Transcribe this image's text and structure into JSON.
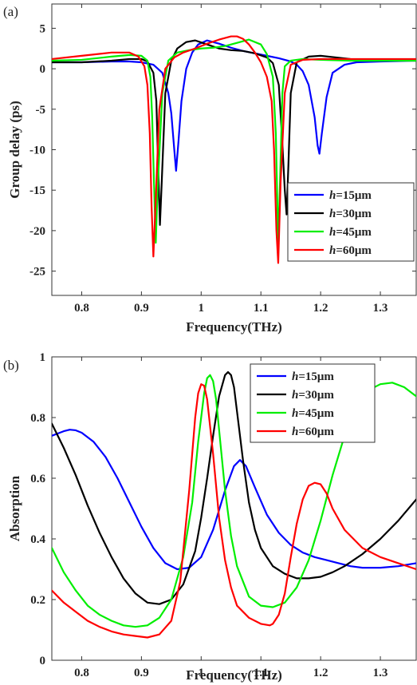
{
  "chart_data": [
    {
      "type": "line",
      "panel_label": "(a)",
      "xlabel": "Frequency(THz)",
      "ylabel": "Group delay (ps)",
      "xlim": [
        0.75,
        1.36
      ],
      "ylim": [
        -28,
        8
      ],
      "xticks": [
        0.8,
        0.9,
        1,
        1.1,
        1.2,
        1.3
      ],
      "xtick_labels": [
        "0.8",
        "0.9",
        "1",
        "1.1",
        "1.2",
        "1.3"
      ],
      "yticks": [
        5,
        0,
        -5,
        -10,
        -15,
        -20,
        -25
      ],
      "ytick_labels": [
        "5",
        "0",
        "-5",
        "-10",
        "-15",
        "-20",
        "-25"
      ],
      "legend_position": "bottom-right",
      "series": [
        {
          "name": "h=15μm",
          "legend_prefix": "h",
          "legend_suffix": "=15μm",
          "color": "#0000ff",
          "x": [
            0.75,
            0.8,
            0.85,
            0.88,
            0.9,
            0.92,
            0.935,
            0.945,
            0.95,
            0.955,
            0.958,
            0.962,
            0.967,
            0.975,
            0.985,
            0.995,
            1.01,
            1.03,
            1.05,
            1.07,
            1.09,
            1.11,
            1.13,
            1.15,
            1.16,
            1.17,
            1.18,
            1.19,
            1.195,
            1.198,
            1.202,
            1.21,
            1.22,
            1.24,
            1.26,
            1.3,
            1.36
          ],
          "y": [
            0.8,
            0.8,
            0.9,
            0.9,
            0.8,
            0.5,
            -0.5,
            -3,
            -5.5,
            -10,
            -12.6,
            -9,
            -4,
            0,
            2,
            3,
            3.5,
            3.1,
            2.6,
            2.2,
            1.9,
            1.6,
            1.3,
            0.9,
            0.5,
            -0.3,
            -2,
            -6,
            -9.5,
            -10.5,
            -8,
            -3.5,
            -0.5,
            0.5,
            0.8,
            0.9,
            1.0
          ]
        },
        {
          "name": "h=30μm",
          "legend_prefix": "h",
          "legend_suffix": "=30μm",
          "color": "#000000",
          "x": [
            0.75,
            0.8,
            0.85,
            0.88,
            0.9,
            0.91,
            0.92,
            0.925,
            0.928,
            0.931,
            0.934,
            0.94,
            0.95,
            0.96,
            0.975,
            0.99,
            1.01,
            1.03,
            1.05,
            1.07,
            1.09,
            1.11,
            1.12,
            1.13,
            1.135,
            1.14,
            1.143,
            1.146,
            1.15,
            1.16,
            1.18,
            1.2,
            1.25,
            1.3,
            1.36
          ],
          "y": [
            0.8,
            0.8,
            1.0,
            1.2,
            1.2,
            0.9,
            -0.5,
            -4,
            -12,
            -19.3,
            -14,
            -3,
            1,
            2.5,
            3.3,
            3.5,
            3.0,
            2.5,
            2.3,
            2.2,
            1.9,
            1.4,
            0.7,
            -2,
            -8,
            -15,
            -18,
            -12,
            -3,
            0.8,
            1.5,
            1.6,
            1.2,
            1.1,
            1.0
          ]
        },
        {
          "name": "h=45μm",
          "legend_prefix": "h",
          "legend_suffix": "=45μm",
          "color": "#00ee00",
          "x": [
            0.75,
            0.8,
            0.85,
            0.88,
            0.9,
            0.91,
            0.915,
            0.918,
            0.921,
            0.924,
            0.927,
            0.935,
            0.945,
            0.96,
            0.98,
            1.0,
            1.02,
            1.04,
            1.06,
            1.08,
            1.1,
            1.11,
            1.12,
            1.125,
            1.129,
            1.132,
            1.136,
            1.14,
            1.15,
            1.17,
            1.2,
            1.25,
            1.3,
            1.36
          ],
          "y": [
            1.0,
            1.1,
            1.5,
            1.7,
            1.6,
            1.0,
            -1,
            -6,
            -14,
            -21.5,
            -15,
            -3,
            1,
            2,
            2.3,
            2.5,
            2.6,
            2.8,
            3.2,
            3.6,
            3.0,
            1.8,
            -1,
            -8,
            -21.5,
            -14,
            -3,
            0.3,
            1,
            1.2,
            1.1,
            1.0,
            1.0,
            1.0
          ]
        },
        {
          "name": "h=60μm",
          "legend_prefix": "h",
          "legend_suffix": "=60μm",
          "color": "#ff0000",
          "x": [
            0.75,
            0.8,
            0.85,
            0.88,
            0.895,
            0.905,
            0.91,
            0.914,
            0.917,
            0.92,
            0.924,
            0.93,
            0.94,
            0.955,
            0.97,
            0.99,
            1.01,
            1.03,
            1.05,
            1.06,
            1.07,
            1.08,
            1.09,
            1.1,
            1.11,
            1.118,
            1.122,
            1.126,
            1.129,
            1.133,
            1.14,
            1.15,
            1.17,
            1.2,
            1.25,
            1.3,
            1.36
          ],
          "y": [
            1.2,
            1.6,
            2.0,
            2.0,
            1.5,
            0.3,
            -2,
            -8,
            -17,
            -23.2,
            -16,
            -5,
            0,
            1.4,
            2,
            2.5,
            3.1,
            3.6,
            4.0,
            4.0,
            3.7,
            3.0,
            2.0,
            0.8,
            -1,
            -4,
            -10,
            -20,
            -24,
            -14,
            -3,
            0.5,
            1.1,
            1.2,
            1.2,
            1.2,
            1.2
          ]
        }
      ]
    },
    {
      "type": "line",
      "panel_label": "(b)",
      "xlabel": "Frequency(THz)",
      "ylabel": "Absorption",
      "xlim": [
        0.75,
        1.36
      ],
      "ylim": [
        0,
        1
      ],
      "xticks": [
        0.8,
        0.9,
        1,
        1.1,
        1.2,
        1.3
      ],
      "xtick_labels": [
        "0.8",
        "0.9",
        "1",
        "1.1",
        "1.2",
        "1.3"
      ],
      "yticks": [
        0,
        0.2,
        0.4,
        0.6,
        0.8,
        1
      ],
      "ytick_labels": [
        "0",
        "0.2",
        "0.4",
        "0.6",
        "0.8",
        "1"
      ],
      "legend_position": "top-center",
      "series": [
        {
          "name": "h=15μm",
          "legend_prefix": "h",
          "legend_suffix": "=15μm",
          "color": "#0000ff",
          "x": [
            0.75,
            0.77,
            0.78,
            0.79,
            0.8,
            0.82,
            0.84,
            0.86,
            0.88,
            0.9,
            0.92,
            0.94,
            0.96,
            0.98,
            1.0,
            1.02,
            1.04,
            1.055,
            1.065,
            1.075,
            1.09,
            1.11,
            1.13,
            1.15,
            1.17,
            1.19,
            1.21,
            1.23,
            1.25,
            1.27,
            1.3,
            1.33,
            1.36
          ],
          "y": [
            0.74,
            0.755,
            0.76,
            0.758,
            0.75,
            0.72,
            0.67,
            0.6,
            0.52,
            0.44,
            0.37,
            0.32,
            0.3,
            0.305,
            0.34,
            0.43,
            0.56,
            0.64,
            0.66,
            0.64,
            0.57,
            0.48,
            0.42,
            0.38,
            0.355,
            0.34,
            0.33,
            0.32,
            0.31,
            0.305,
            0.305,
            0.31,
            0.32
          ]
        },
        {
          "name": "h=30μm",
          "legend_prefix": "h",
          "legend_suffix": "=30μm",
          "color": "#000000",
          "x": [
            0.75,
            0.77,
            0.79,
            0.81,
            0.83,
            0.85,
            0.87,
            0.89,
            0.91,
            0.93,
            0.95,
            0.97,
            0.99,
            1.0,
            1.01,
            1.02,
            1.03,
            1.04,
            1.045,
            1.05,
            1.055,
            1.06,
            1.07,
            1.08,
            1.09,
            1.1,
            1.12,
            1.14,
            1.16,
            1.18,
            1.2,
            1.22,
            1.24,
            1.27,
            1.3,
            1.33,
            1.36
          ],
          "y": [
            0.78,
            0.7,
            0.61,
            0.51,
            0.42,
            0.34,
            0.27,
            0.22,
            0.19,
            0.185,
            0.2,
            0.25,
            0.36,
            0.47,
            0.6,
            0.74,
            0.87,
            0.94,
            0.95,
            0.94,
            0.9,
            0.82,
            0.66,
            0.52,
            0.43,
            0.37,
            0.31,
            0.285,
            0.27,
            0.27,
            0.275,
            0.29,
            0.31,
            0.35,
            0.4,
            0.46,
            0.53
          ]
        },
        {
          "name": "h=45μm",
          "legend_prefix": "h",
          "legend_suffix": "=45μm",
          "color": "#00ee00",
          "x": [
            0.75,
            0.77,
            0.79,
            0.81,
            0.83,
            0.85,
            0.87,
            0.89,
            0.91,
            0.93,
            0.95,
            0.97,
            0.985,
            0.995,
            1.005,
            1.01,
            1.015,
            1.02,
            1.025,
            1.03,
            1.04,
            1.05,
            1.06,
            1.08,
            1.1,
            1.12,
            1.14,
            1.16,
            1.18,
            1.2,
            1.22,
            1.24,
            1.26,
            1.28,
            1.3,
            1.32,
            1.34,
            1.36
          ],
          "y": [
            0.37,
            0.29,
            0.23,
            0.18,
            0.15,
            0.13,
            0.115,
            0.11,
            0.115,
            0.14,
            0.2,
            0.34,
            0.52,
            0.72,
            0.88,
            0.93,
            0.94,
            0.92,
            0.86,
            0.76,
            0.56,
            0.41,
            0.31,
            0.21,
            0.18,
            0.175,
            0.19,
            0.24,
            0.33,
            0.46,
            0.61,
            0.74,
            0.83,
            0.89,
            0.91,
            0.915,
            0.9,
            0.87
          ]
        },
        {
          "name": "h=60μm",
          "legend_prefix": "h",
          "legend_suffix": "=60μm",
          "color": "#ff0000",
          "x": [
            0.75,
            0.77,
            0.79,
            0.81,
            0.83,
            0.85,
            0.87,
            0.89,
            0.91,
            0.93,
            0.95,
            0.965,
            0.98,
            0.99,
            0.995,
            1.0,
            1.005,
            1.01,
            1.02,
            1.03,
            1.04,
            1.05,
            1.06,
            1.08,
            1.1,
            1.115,
            1.12,
            1.13,
            1.14,
            1.15,
            1.16,
            1.17,
            1.18,
            1.19,
            1.2,
            1.21,
            1.22,
            1.24,
            1.27,
            1.3,
            1.33,
            1.36
          ],
          "y": [
            0.23,
            0.19,
            0.16,
            0.13,
            0.11,
            0.095,
            0.085,
            0.08,
            0.075,
            0.085,
            0.13,
            0.26,
            0.56,
            0.8,
            0.88,
            0.91,
            0.905,
            0.86,
            0.68,
            0.47,
            0.33,
            0.24,
            0.18,
            0.14,
            0.12,
            0.115,
            0.12,
            0.15,
            0.22,
            0.34,
            0.45,
            0.53,
            0.575,
            0.585,
            0.58,
            0.55,
            0.5,
            0.43,
            0.37,
            0.34,
            0.32,
            0.3
          ]
        }
      ]
    }
  ]
}
